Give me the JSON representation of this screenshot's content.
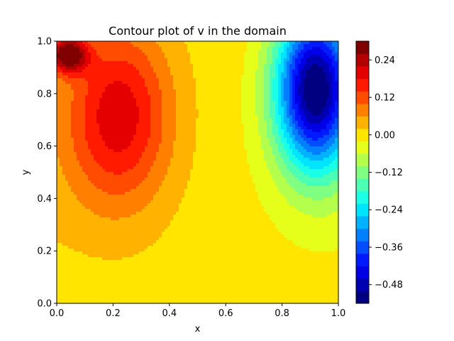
{
  "chart_data": {
    "type": "contour",
    "title": "Contour plot of v in the domain",
    "xlabel": "x",
    "ylabel": "y",
    "xlim": [
      0.0,
      1.0
    ],
    "ylim": [
      0.0,
      1.0
    ],
    "x_ticks": [
      "0.0",
      "0.2",
      "0.4",
      "0.6",
      "0.8",
      "1.0"
    ],
    "y_ticks": [
      "0.0",
      "0.2",
      "0.4",
      "0.6",
      "0.8",
      "1.0"
    ],
    "colormap": "jet",
    "colorbar": {
      "range": [
        -0.54,
        0.3
      ],
      "level_step": 0.04,
      "tick_values": [
        0.24,
        0.12,
        0.0,
        -0.12,
        -0.24,
        -0.36,
        -0.48
      ],
      "tick_labels": [
        "0.24",
        "0.12",
        "0.00",
        "−0.12",
        "−0.24",
        "−0.36",
        "−0.48"
      ]
    },
    "features": [
      {
        "kind": "maximum",
        "x": 0.04,
        "y": 0.95,
        "value": 0.29
      },
      {
        "kind": "positive-lobe-center",
        "x": 0.22,
        "y": 0.72,
        "value": 0.2
      },
      {
        "kind": "minimum",
        "x": 0.92,
        "y": 0.82,
        "value": -0.54
      },
      {
        "kind": "zero-contour-crossing",
        "x": 0.6,
        "y": 0.5,
        "value": 0.0
      }
    ],
    "grid": false,
    "legend": "none"
  }
}
